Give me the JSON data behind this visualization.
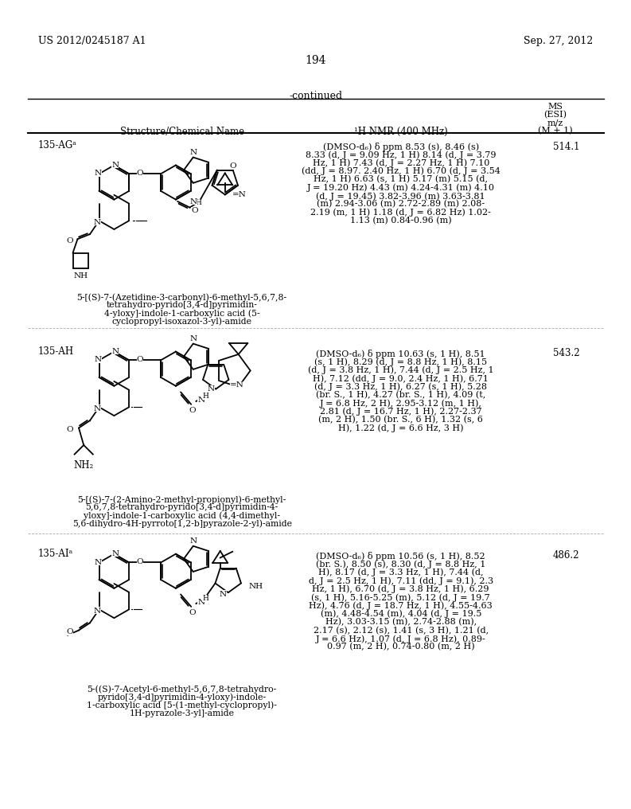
{
  "background_color": "#ffffff",
  "page_number": "194",
  "left_header": "US 2012/0245187 A1",
  "right_header": "Sep. 27, 2012",
  "continued_text": "-continued",
  "col1_header": "Structure/Chemical Name",
  "col2_header": "¹H NMR (400 MHz)",
  "ms_header": [
    "MS",
    "(ESI)",
    "m/z",
    "(M + 1)"
  ],
  "entries": [
    {
      "id": "135-AGᵃ",
      "ms": "514.1",
      "name_lines": [
        "5-[(S)-7-(Azetidine-3-carbonyl)-6-methyl-5,6,7,8-",
        "tetrahydro-pyrido[3,4-d]pyrimidin-",
        "4-yloxy]-indole-1-carboxylic acid (5-",
        "cyclopropyl-isoxazol-3-yl)-amide"
      ],
      "nmr_lines": [
        "(DMSO-d₆) δ ppm 8.53 (s), 8.46 (s)",
        "8.33 (d, J = 9.09 Hz, 1 H) 8.14 (d, J = 3.79",
        "Hz, 1 H) 7.43 (d, J = 2.27 Hz, 1 H) 7.10",
        "(dd, J = 8.97. 2.40 Hz, 1 H) 6.70 (d, J = 3.54",
        "Hz, 1 H) 6.63 (s, 1 H) 5.17 (m) 5.15 (d,",
        "J = 19.20 Hz) 4.43 (m) 4.24-4.31 (m) 4.10",
        "(d, J = 19.45) 3.82-3.96 (m) 3.63-3.81",
        "(m) 2.94-3.06 (m) 2.72-2.89 (m) 2.08-",
        "2.19 (m, 1 H) 1.18 (d, J = 6.82 Hz) 1.02-",
        "1.13 (m) 0.84-0.96 (m)"
      ]
    },
    {
      "id": "135-AH",
      "ms": "543.2",
      "name_lines": [
        "5-[(S)-7-(2-Amino-2-methyl-propionyl)-6-methyl-",
        "5,6,7,8-tetrahydro-pyrido[3,4-d]pyrimidin-4-",
        "yloxy]-indole-1-carboxylic acid (4,4-dimethyl-",
        "5,6-dihydro-4H-pyrroto[1,2-b]pyrazole-2-yl)-amide"
      ],
      "nmr_lines": [
        "(DMSO-d₆) δ ppm 10.63 (s, 1 H), 8.51",
        "(s, 1 H), 8.29 (d, J = 8.8 Hz, 1 H), 8.15",
        "(d, J = 3.8 Hz, 1 H), 7.44 (d, J = 2.5 Hz, 1",
        "H), 7.12 (dd, J = 9.0, 2.4 Hz, 1 H), 6.71",
        "(d, J = 3.3 Hz, 1 H), 6.27 (s, 1 H), 5.28",
        "(br. S., 1 H), 4.27 (br. S., 1 H), 4.09 (t,",
        "J = 6.8 Hz, 2 H), 2.95-3.12 (m, 1 H),",
        "2.81 (d, J = 16.7 Hz, 1 H), 2.27-2.37",
        "(m, 2 H), 1.50 (br. S., 6 H), 1.32 (s, 6",
        "H), 1.22 (d, J = 6.6 Hz, 3 H)"
      ]
    },
    {
      "id": "135-AIᵃ",
      "ms": "486.2",
      "name_lines": [
        "5-((S)-7-Acetyl-6-methyl-5,6,7,8-tetrahydro-",
        "pyrido[3,4-d]pyrimidin-4-yloxy)-indole-",
        "1-carboxylic acid [5-(1-methyl-cyclopropyl)-",
        "1H-pyrazole-3-yl]-amide"
      ],
      "nmr_lines": [
        "(DMSO-d₆) δ ppm 10.56 (s, 1 H), 8.52",
        "(br. S.), 8.50 (s), 8.30 (d, J = 8.8 Hz, 1",
        "H), 8.17 (d, J = 3.3 Hz, 1 H), 7.44 (d,",
        "d, J = 2.5 Hz, 1 H), 7.11 (dd, J = 9.1), 2.3",
        "Hz, 1 H), 6.70 (d, J = 3.8 Hz, 1 H), 6.29",
        "(s, 1 H), 5.16-5.25 (m), 5.12 (d, J = 19.7",
        "Hz), 4.76 (d, J = 18.7 Hz, 1 H), 4.55-4.63",
        "(m), 4.48-4.54 (m), 4.04 (d, J = 19.5",
        "Hz), 3.03-3.15 (m), 2.74-2.88 (m),",
        "2.17 (s), 2.12 (s), 1.41 (s, 3 H), 1.21 (d,",
        "J = 6.6 Hz), 1.07 (d, J = 6.8 Hz), 0.89-",
        "0.97 (m, 2 H), 0.74-0.80 (m, 2 H)"
      ]
    }
  ]
}
